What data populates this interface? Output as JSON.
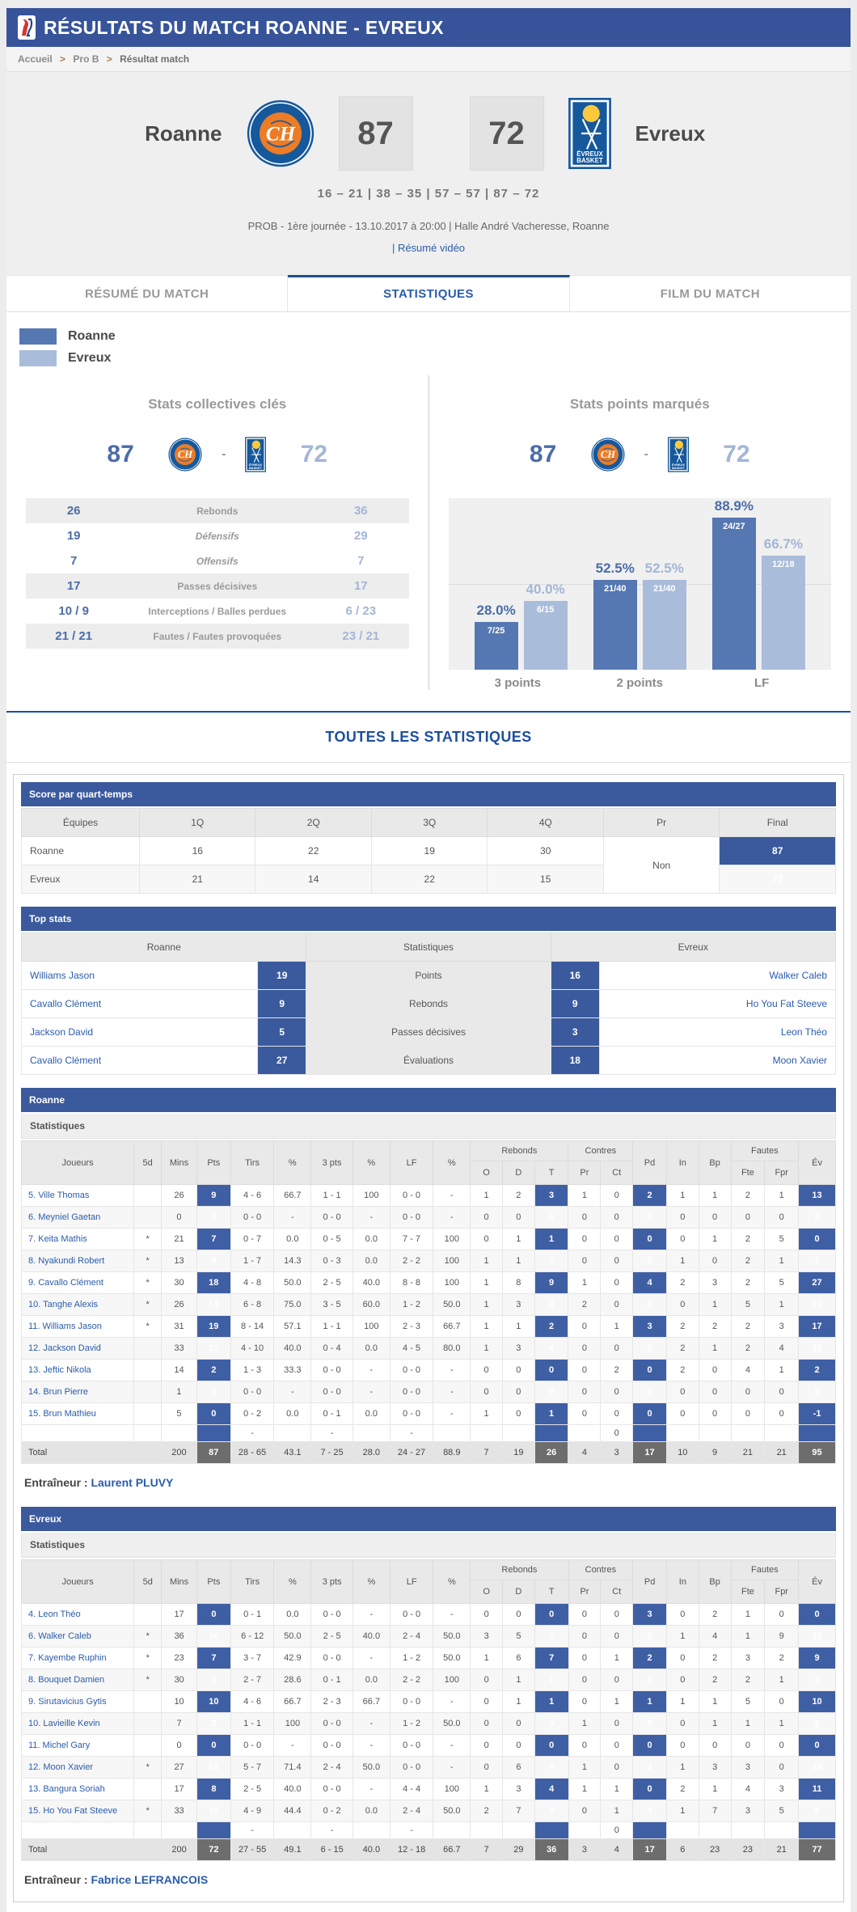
{
  "page": {
    "title": "RÉSULTATS DU MATCH ROANNE - EVREUX"
  },
  "breadcrumb": {
    "items": [
      "Accueil",
      "Pro B",
      "Résultat match"
    ],
    "separator": ">"
  },
  "scoreboard": {
    "home_name": "Roanne",
    "away_name": "Evreux",
    "home_score": "87",
    "away_score": "72",
    "quarters": "16 – 21  |  38 – 35  |  57 – 57  |  87 – 72",
    "info": "PROB - 1ère journée - 13.10.2017 à 20:00 | Halle André Vacheresse, Roanne",
    "video_link": "| Résumé vidéo"
  },
  "tabs": [
    {
      "label": "RÉSUMÉ DU MATCH",
      "active": false
    },
    {
      "label": "STATISTIQUES",
      "active": true
    },
    {
      "label": "FILM DU MATCH",
      "active": false
    }
  ],
  "legend": {
    "home": "Roanne",
    "away": "Evreux",
    "home_color": "#5577b2",
    "away_color": "#a9bcda"
  },
  "key_stats": {
    "title": "Stats collectives clés",
    "home_score": "87",
    "away_score": "72",
    "dash": "-",
    "rows": [
      {
        "home": "26",
        "label": "Rebonds",
        "away": "36",
        "italic": false,
        "shaded": true
      },
      {
        "home": "19",
        "label": "Défensifs",
        "away": "29",
        "italic": true,
        "shaded": false
      },
      {
        "home": "7",
        "label": "Offensifs",
        "away": "7",
        "italic": true,
        "shaded": false
      },
      {
        "home": "17",
        "label": "Passes décisives",
        "away": "17",
        "italic": false,
        "shaded": true
      },
      {
        "home": "10 / 9",
        "label": "Interceptions / Balles perdues",
        "away": "6 / 23",
        "italic": false,
        "shaded": false
      },
      {
        "home": "21 / 21",
        "label": "Fautes / Fautes provoquées",
        "away": "23 / 21",
        "italic": false,
        "shaded": true
      }
    ]
  },
  "chart_data": {
    "type": "bar",
    "title": "Stats points marqués",
    "home_score": "87",
    "away_score": "72",
    "dash": "-",
    "categories": [
      "3 points",
      "2 points",
      "LF"
    ],
    "series": [
      {
        "name": "Roanne",
        "values": [
          28.0,
          52.5,
          88.9
        ],
        "labels": [
          "28.0%",
          "52.5%",
          "88.9%"
        ],
        "fractions": [
          "7/25",
          "21/40",
          "24/27"
        ],
        "color": "#5577b2"
      },
      {
        "name": "Evreux",
        "values": [
          40.0,
          52.5,
          66.7
        ],
        "labels": [
          "40.0%",
          "52.5%",
          "66.7%"
        ],
        "fractions": [
          "6/15",
          "21/40",
          "12/18"
        ],
        "color": "#a9bcda"
      }
    ],
    "ylim": [
      0,
      100
    ],
    "grid": true,
    "legend_position": "none"
  },
  "all_stats_title": "TOUTES LES STATISTIQUES",
  "quarter_table": {
    "title": "Score par quart-temps",
    "columns": [
      "Équipes",
      "1Q",
      "2Q",
      "3Q",
      "4Q",
      "Pr",
      "Final"
    ],
    "pr_value": "Non",
    "rows": [
      {
        "team": "Roanne",
        "q": [
          "16",
          "22",
          "19",
          "30"
        ],
        "final": "87"
      },
      {
        "team": "Evreux",
        "q": [
          "21",
          "14",
          "22",
          "15"
        ],
        "final": "72"
      }
    ]
  },
  "top_stats": {
    "title": "Top stats",
    "columns": [
      "Roanne",
      "Statistiques",
      "Evreux"
    ],
    "rows": [
      {
        "home_player": "Williams Jason",
        "home_value": "19",
        "label": "Points",
        "away_value": "16",
        "away_player": "Walker Caleb"
      },
      {
        "home_player": "Cavallo Clément",
        "home_value": "9",
        "label": "Rebonds",
        "away_value": "9",
        "away_player": "Ho You Fat Steeve"
      },
      {
        "home_player": "Jackson David",
        "home_value": "5",
        "label": "Passes décisives",
        "away_value": "3",
        "away_player": "Leon Théo"
      },
      {
        "home_player": "Cavallo Clément",
        "home_value": "27",
        "label": "Évaluations",
        "away_value": "18",
        "away_player": "Moon Xavier"
      }
    ]
  },
  "player_header": {
    "row1": [
      {
        "label": "Joueurs",
        "rs": 2
      },
      {
        "label": "5d",
        "rs": 2
      },
      {
        "label": "Mins",
        "rs": 2
      },
      {
        "label": "Pts",
        "rs": 2
      },
      {
        "label": "Tirs",
        "rs": 2
      },
      {
        "label": "%",
        "rs": 2
      },
      {
        "label": "3 pts",
        "rs": 2
      },
      {
        "label": "%",
        "rs": 2
      },
      {
        "label": "LF",
        "rs": 2
      },
      {
        "label": "%",
        "rs": 2
      },
      {
        "label": "Rebonds",
        "cs": 3
      },
      {
        "label": "Contres",
        "cs": 2
      },
      {
        "label": "Pd",
        "rs": 2
      },
      {
        "label": "In",
        "rs": 2
      },
      {
        "label": "Bp",
        "rs": 2
      },
      {
        "label": "Fautes",
        "cs": 2
      },
      {
        "label": "Év",
        "rs": 2
      }
    ],
    "row2": [
      {
        "label": "O"
      },
      {
        "label": "D"
      },
      {
        "label": "T"
      },
      {
        "label": "Pr"
      },
      {
        "label": "Ct"
      },
      {
        "label": "Fte"
      },
      {
        "label": "Fpr"
      }
    ]
  },
  "stats_tables": [
    {
      "team": "Roanne",
      "subtitle": "Statistiques",
      "rows": [
        [
          "5. Ville Thomas",
          "",
          "26",
          "9",
          "4 - 6",
          "66.7",
          "1 - 1",
          "100",
          "0 - 0",
          "-",
          "1",
          "2",
          "3",
          "1",
          "0",
          "2",
          "1",
          "1",
          "2",
          "1",
          "13"
        ],
        [
          "6. Meyniel Gaetan",
          "",
          "0",
          "0",
          "0 - 0",
          "-",
          "0 - 0",
          "-",
          "0 - 0",
          "-",
          "0",
          "0",
          "0",
          "0",
          "0",
          "0",
          "0",
          "0",
          "0",
          "0",
          "0"
        ],
        [
          "7. Keita Mathis",
          "*",
          "21",
          "7",
          "0 - 7",
          "0.0",
          "0 - 5",
          "0.0",
          "7 - 7",
          "100",
          "0",
          "1",
          "1",
          "0",
          "0",
          "0",
          "0",
          "1",
          "2",
          "5",
          "0"
        ],
        [
          "8. Nyakundi Robert",
          "*",
          "13",
          "4",
          "1 - 7",
          "14.3",
          "0 - 3",
          "0.0",
          "2 - 2",
          "100",
          "1",
          "1",
          "2",
          "0",
          "0",
          "0",
          "1",
          "0",
          "2",
          "1",
          "1"
        ],
        [
          "9. Cavallo Clément",
          "*",
          "30",
          "18",
          "4 - 8",
          "50.0",
          "2 - 5",
          "40.0",
          "8 - 8",
          "100",
          "1",
          "8",
          "9",
          "1",
          "0",
          "4",
          "2",
          "3",
          "2",
          "5",
          "27"
        ],
        [
          "10. Tanghe Alexis",
          "*",
          "26",
          "16",
          "6 - 8",
          "75.0",
          "3 - 5",
          "60.0",
          "1 - 2",
          "50.0",
          "1",
          "3",
          "4",
          "2",
          "0",
          "3",
          "0",
          "1",
          "5",
          "1",
          "21"
        ],
        [
          "11. Williams Jason",
          "*",
          "31",
          "19",
          "8 - 14",
          "57.1",
          "1 - 1",
          "100",
          "2 - 3",
          "66.7",
          "1",
          "1",
          "2",
          "0",
          "1",
          "3",
          "2",
          "2",
          "2",
          "3",
          "17"
        ],
        [
          "12. Jackson David",
          "",
          "33",
          "12",
          "4 - 10",
          "40.0",
          "0 - 4",
          "0.0",
          "4 - 5",
          "80.0",
          "1",
          "3",
          "4",
          "0",
          "0",
          "5",
          "2",
          "1",
          "2",
          "4",
          "15"
        ],
        [
          "13. Jeftic Nikola",
          "",
          "14",
          "2",
          "1 - 3",
          "33.3",
          "0 - 0",
          "-",
          "0 - 0",
          "-",
          "0",
          "0",
          "0",
          "0",
          "2",
          "0",
          "2",
          "0",
          "4",
          "1",
          "2"
        ],
        [
          "14. Brun Pierre",
          "",
          "1",
          "0",
          "0 - 0",
          "-",
          "0 - 0",
          "-",
          "0 - 0",
          "-",
          "0",
          "0",
          "0",
          "0",
          "0",
          "0",
          "0",
          "0",
          "0",
          "0",
          "0"
        ],
        [
          "15. Brun Mathieu",
          "",
          "5",
          "0",
          "0 - 2",
          "0.0",
          "0 - 1",
          "0.0",
          "0 - 0",
          "-",
          "1",
          "0",
          "1",
          "0",
          "0",
          "0",
          "0",
          "0",
          "0",
          "0",
          "-1"
        ]
      ],
      "spacer": [
        "",
        "",
        "",
        "",
        "-",
        "",
        "-",
        "",
        "-",
        "",
        "",
        "",
        "",
        "",
        "0",
        "",
        "",
        "",
        "",
        "",
        ""
      ],
      "total": [
        "Total",
        "",
        "200",
        "87",
        "28 - 65",
        "43.1",
        "7 - 25",
        "28.0",
        "24 - 27",
        "88.9",
        "7",
        "19",
        "26",
        "4",
        "3",
        "17",
        "10",
        "9",
        "21",
        "21",
        "95"
      ],
      "coach_label": "Entraîneur :",
      "coach": "Laurent PLUVY"
    },
    {
      "team": "Evreux",
      "subtitle": "Statistiques",
      "rows": [
        [
          "4. Leon Théo",
          "",
          "17",
          "0",
          "0 - 1",
          "0.0",
          "0 - 0",
          "-",
          "0 - 0",
          "-",
          "0",
          "0",
          "0",
          "0",
          "0",
          "3",
          "0",
          "2",
          "1",
          "0",
          "0"
        ],
        [
          "6. Walker Caleb",
          "*",
          "36",
          "16",
          "6 - 12",
          "50.0",
          "2 - 5",
          "40.0",
          "2 - 4",
          "50.0",
          "3",
          "5",
          "8",
          "0",
          "0",
          "2",
          "1",
          "4",
          "1",
          "9",
          "15"
        ],
        [
          "7. Kayembe Ruphin",
          "*",
          "23",
          "7",
          "3 - 7",
          "42.9",
          "0 - 0",
          "-",
          "1 - 2",
          "50.0",
          "1",
          "6",
          "7",
          "0",
          "1",
          "2",
          "0",
          "2",
          "3",
          "2",
          "9"
        ],
        [
          "8. Bouquet Damien",
          "*",
          "30",
          "6",
          "2 - 7",
          "28.6",
          "0 - 1",
          "0.0",
          "2 - 2",
          "100",
          "0",
          "1",
          "1",
          "0",
          "0",
          "3",
          "0",
          "2",
          "2",
          "1",
          "3"
        ],
        [
          "9. Sirutavicius Gytis",
          "",
          "10",
          "10",
          "4 - 6",
          "66.7",
          "2 - 3",
          "66.7",
          "0 - 0",
          "-",
          "0",
          "1",
          "1",
          "0",
          "1",
          "1",
          "1",
          "1",
          "5",
          "0",
          "10"
        ],
        [
          "10. Lavieille Kevin",
          "",
          "7",
          "3",
          "1 - 1",
          "100",
          "0 - 0",
          "-",
          "1 - 2",
          "50.0",
          "0",
          "0",
          "0",
          "1",
          "0",
          "0",
          "0",
          "1",
          "1",
          "1",
          "2"
        ],
        [
          "11. Michel Gary",
          "",
          "0",
          "0",
          "0 - 0",
          "-",
          "0 - 0",
          "-",
          "0 - 0",
          "-",
          "0",
          "0",
          "0",
          "0",
          "0",
          "0",
          "0",
          "0",
          "0",
          "0",
          "0"
        ],
        [
          "12. Moon Xavier",
          "*",
          "27",
          "12",
          "5 - 7",
          "71.4",
          "2 - 4",
          "50.0",
          "0 - 0",
          "-",
          "0",
          "6",
          "6",
          "1",
          "0",
          "3",
          "1",
          "3",
          "3",
          "0",
          "18"
        ],
        [
          "13. Bangura Soriah",
          "",
          "17",
          "8",
          "2 - 5",
          "40.0",
          "0 - 0",
          "-",
          "4 - 4",
          "100",
          "1",
          "3",
          "4",
          "1",
          "1",
          "0",
          "2",
          "1",
          "4",
          "3",
          "11"
        ],
        [
          "15. Ho You Fat Steeve",
          "*",
          "33",
          "10",
          "4 - 9",
          "44.4",
          "0 - 2",
          "0.0",
          "2 - 4",
          "50.0",
          "2",
          "7",
          "9",
          "0",
          "1",
          "3",
          "1",
          "7",
          "3",
          "5",
          "9"
        ]
      ],
      "spacer": [
        "",
        "",
        "",
        "",
        "-",
        "",
        "-",
        "",
        "-",
        "",
        "",
        "",
        "",
        "",
        "0",
        "",
        "",
        "",
        "",
        "",
        ""
      ],
      "total": [
        "Total",
        "",
        "200",
        "72",
        "27 - 55",
        "49.1",
        "6 - 15",
        "40.0",
        "12 - 18",
        "66.7",
        "7",
        "29",
        "36",
        "3",
        "4",
        "17",
        "6",
        "23",
        "23",
        "21",
        "77"
      ],
      "coach_label": "Entraîneur :",
      "coach": "Fabrice LEFRANCOIS"
    }
  ]
}
